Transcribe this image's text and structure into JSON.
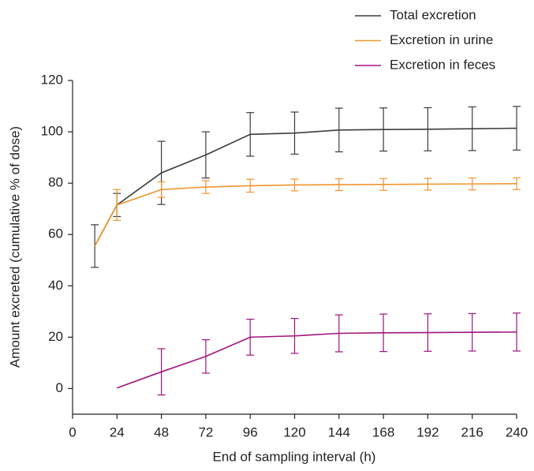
{
  "chart_data": {
    "type": "line",
    "x_label": "End of sampling interval (h)",
    "y_label": "Amount excreted (cumulative % of dose)",
    "x": [
      12,
      24,
      48,
      72,
      96,
      120,
      144,
      168,
      192,
      216,
      240
    ],
    "series": [
      {
        "name": "Total excretion",
        "color": "#3c3c3c",
        "values": [
          55.5,
          71.5,
          84,
          91,
          99,
          99.5,
          100.7,
          100.9,
          101,
          101.2,
          101.4
        ],
        "errors": [
          8.3,
          4.5,
          12.3,
          9,
          8.5,
          8.2,
          8.5,
          8.4,
          8.4,
          8.5,
          8.5
        ]
      },
      {
        "name": "Excretion in urine",
        "color": "#f0952e",
        "values": [
          55.5,
          71.5,
          77.5,
          78.5,
          79,
          79.3,
          79.4,
          79.5,
          79.6,
          79.7,
          79.8
        ],
        "errors": [
          null,
          6,
          3,
          2.5,
          2.5,
          2.3,
          2.3,
          2.3,
          2.3,
          2.3,
          2.3
        ]
      },
      {
        "name": "Excretion in feces",
        "color": "#a0147e",
        "values": [
          null,
          0.2,
          6.5,
          12.5,
          20,
          20.5,
          21.5,
          21.7,
          21.8,
          21.9,
          22
        ],
        "errors": [
          null,
          null,
          9,
          6.5,
          7,
          6.8,
          7.2,
          7.3,
          7.3,
          7.3,
          7.4
        ]
      }
    ],
    "xlim": [
      0,
      240
    ],
    "xticks": [
      0,
      24,
      48,
      72,
      96,
      120,
      144,
      168,
      192,
      216,
      240
    ],
    "ylim": [
      -10,
      120
    ],
    "yticks": [
      0,
      20,
      40,
      60,
      80,
      100,
      120
    ],
    "grid": false,
    "legend": "top-right"
  }
}
